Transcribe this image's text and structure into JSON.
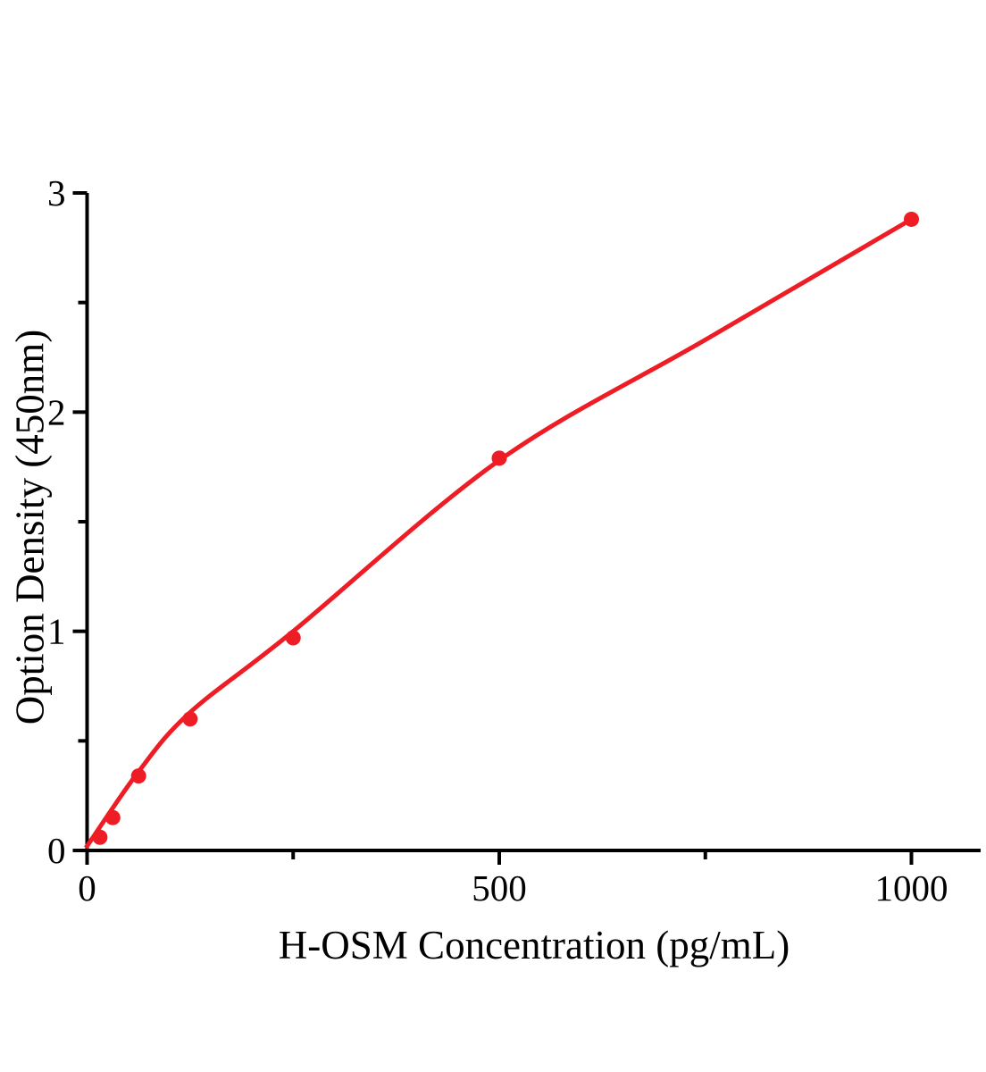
{
  "figure": {
    "background_color": "#ffffff",
    "axis_color": "#000000",
    "accent_color": "#ee1c25"
  },
  "chart_data": {
    "type": "scatter",
    "title": "",
    "xlabel": "H-OSM Concentration (pg/mL)",
    "ylabel": "Option Density (450nm)",
    "xlim": [
      0,
      1084
    ],
    "ylim": [
      0,
      3
    ],
    "x_major_ticks": [
      0,
      500,
      1000
    ],
    "x_major_tick_labels": [
      "0",
      "500",
      "1000"
    ],
    "x_minor_ticks": [
      250,
      750
    ],
    "y_major_ticks": [
      0,
      1,
      2,
      3
    ],
    "y_major_tick_labels": [
      "0",
      "1",
      "2",
      "3"
    ],
    "y_minor_ticks": [
      0.5,
      1.5,
      2.5
    ],
    "grid": false,
    "legend_position": "none",
    "series": [
      {
        "name": "fitted-curve",
        "type": "line",
        "color": "#ee1c25",
        "line_width": 5,
        "points": [
          [
            0,
            0.02
          ],
          [
            62.5,
            0.36
          ],
          [
            125,
            0.63
          ],
          [
            250,
            1.0
          ],
          [
            500,
            1.78
          ],
          [
            750,
            2.33
          ],
          [
            1000,
            2.88
          ]
        ]
      },
      {
        "name": "standard-points",
        "type": "scatter",
        "color": "#ee1c25",
        "marker": "circle",
        "marker_radius": 8.5,
        "points": [
          [
            15.6,
            0.06
          ],
          [
            31.2,
            0.15
          ],
          [
            62.5,
            0.34
          ],
          [
            125,
            0.6
          ],
          [
            250,
            0.97
          ],
          [
            500,
            1.79
          ],
          [
            1000,
            2.88
          ]
        ]
      }
    ]
  }
}
